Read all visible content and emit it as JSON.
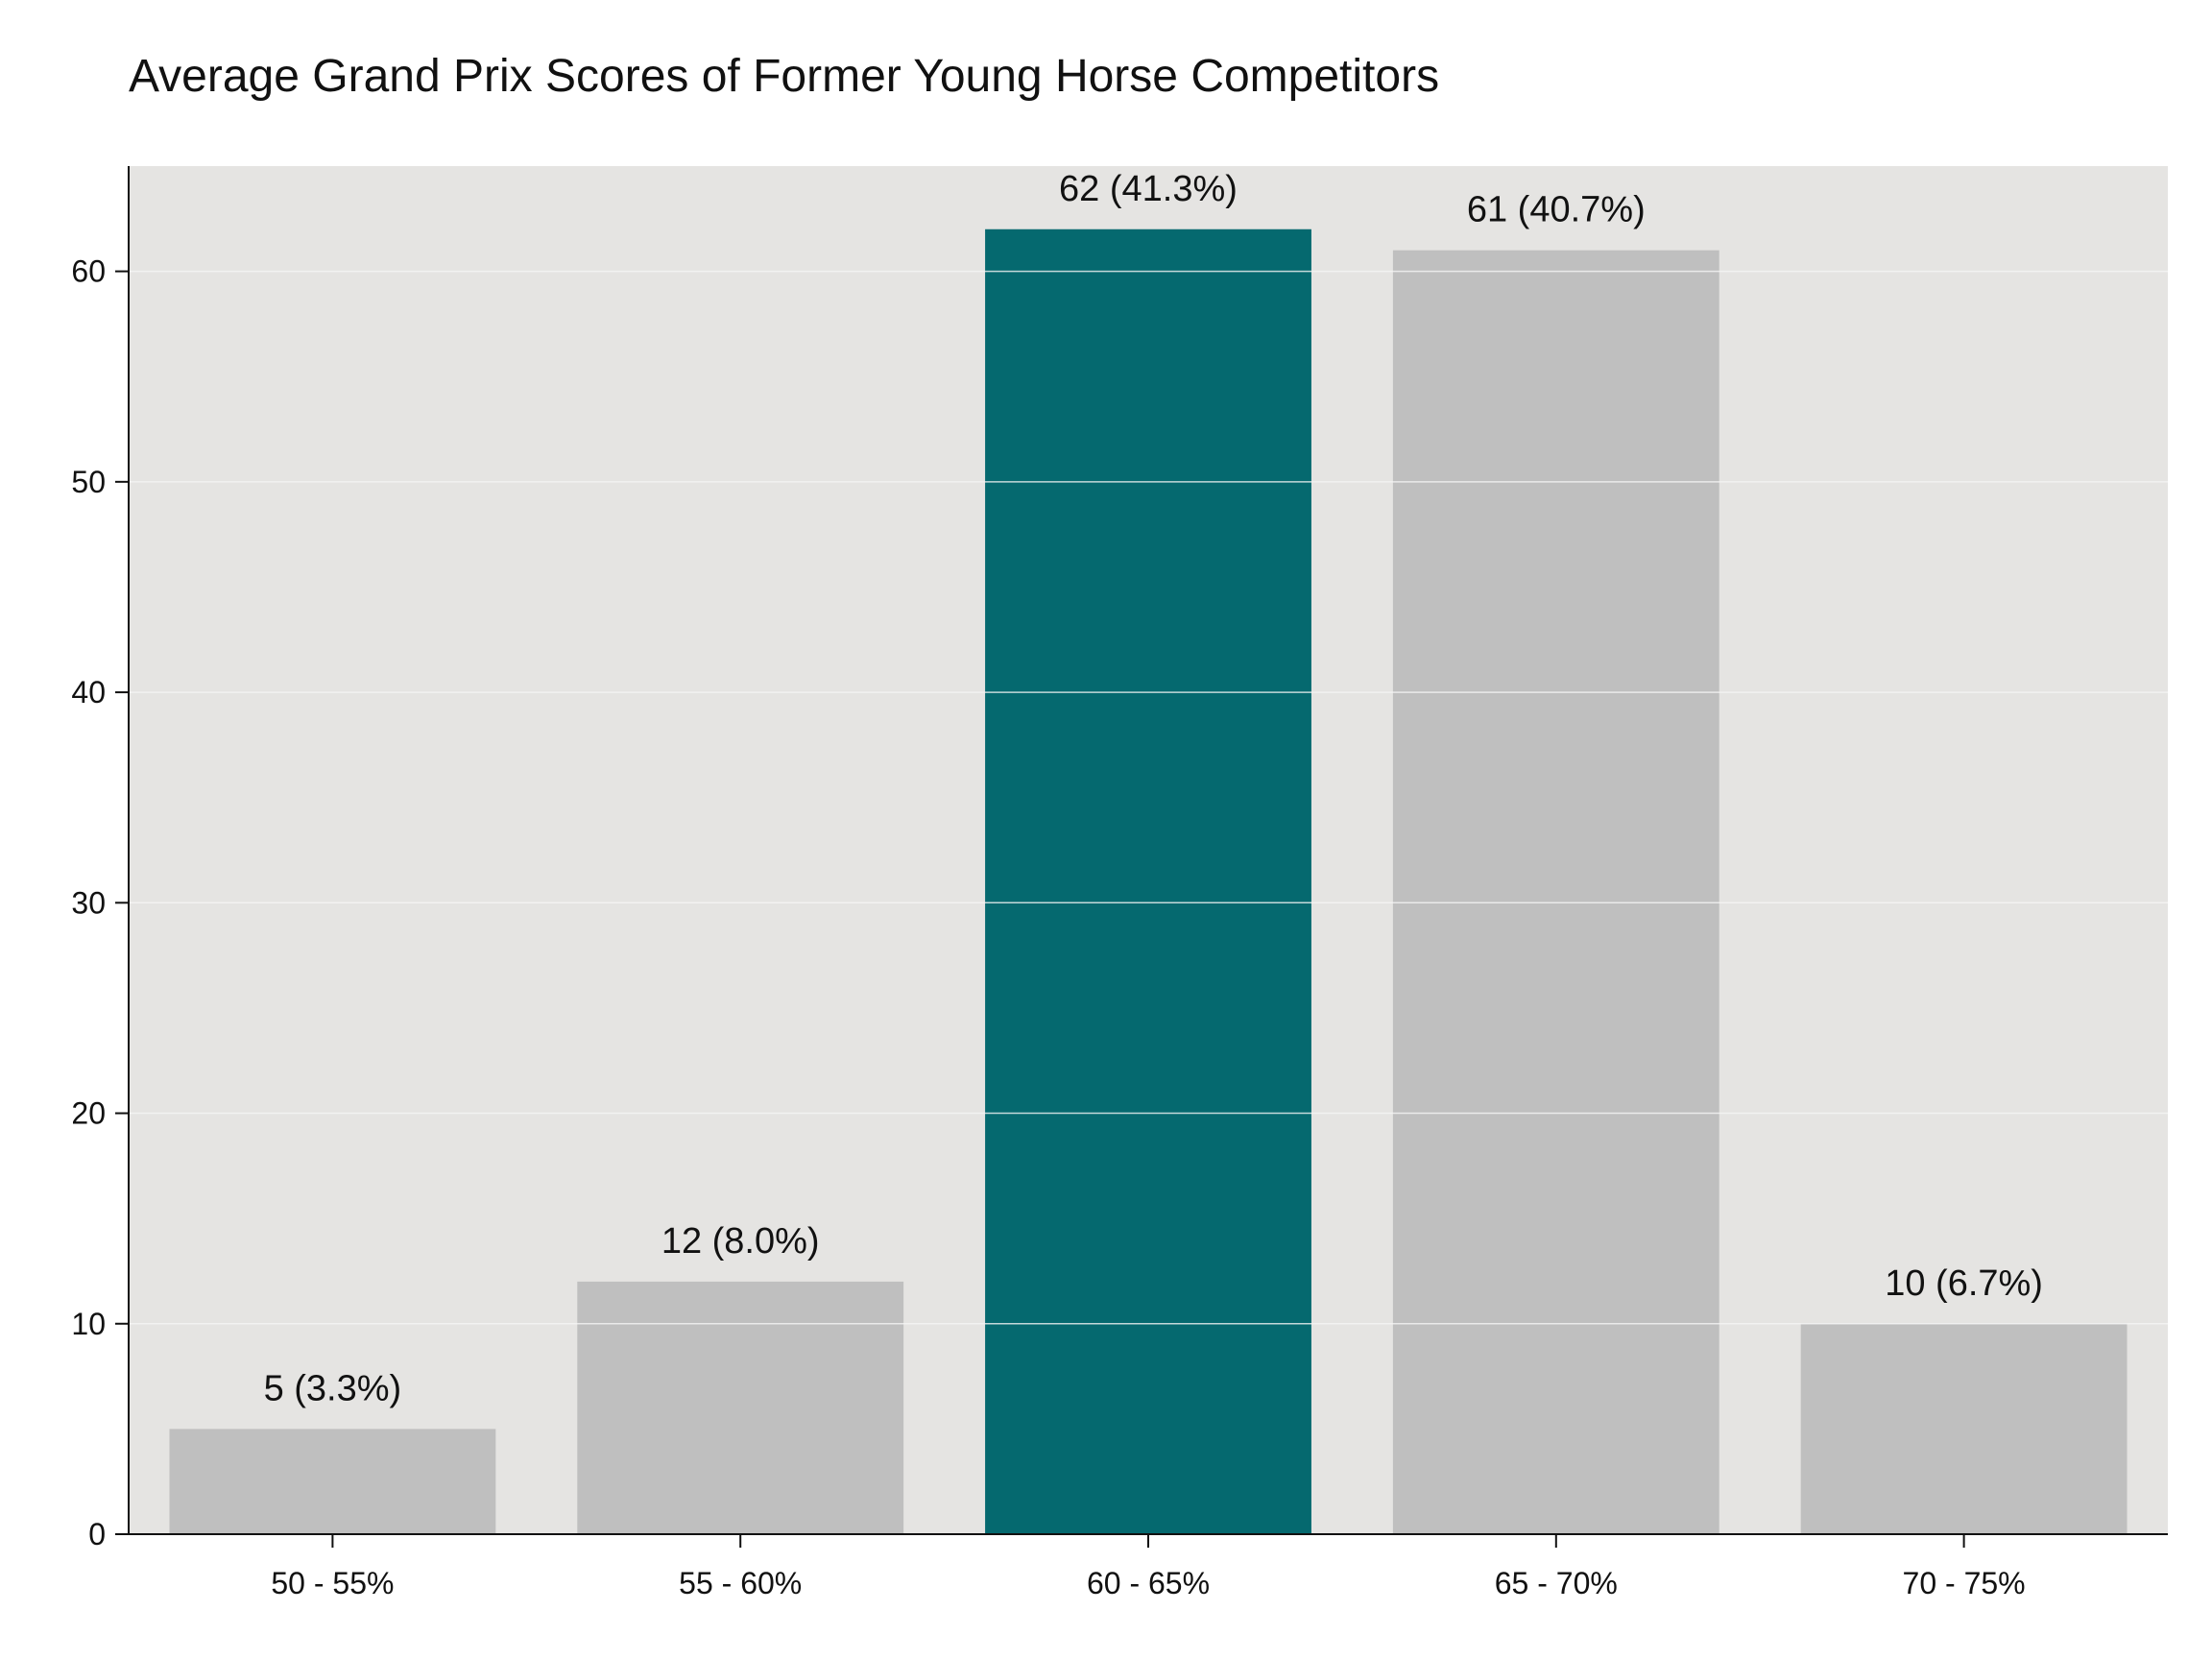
{
  "chart_data": {
    "type": "bar",
    "title": "Average Grand Prix Scores of Former Young Horse Competitors",
    "xlabel": "",
    "ylabel": "",
    "categories": [
      "50 - 55%",
      "55 - 60%",
      "60 - 65%",
      "65 - 70%",
      "70 - 75%"
    ],
    "values": [
      5,
      12,
      62,
      61,
      10
    ],
    "data_labels": [
      "5 (3.3%)",
      "12 (8.0%)",
      "62 (41.3%)",
      "61 (40.7%)",
      "10 (6.7%)"
    ],
    "ylim": [
      0,
      65
    ],
    "yticks": [
      0,
      10,
      20,
      30,
      40,
      50,
      60
    ],
    "grid": true,
    "highlight_index": 2,
    "colors": {
      "bar": "#bfbfbf",
      "highlight": "#05696f",
      "plot_background": "#e5e4e2",
      "grid": "#f5f5f5",
      "axis": "#111111"
    }
  }
}
